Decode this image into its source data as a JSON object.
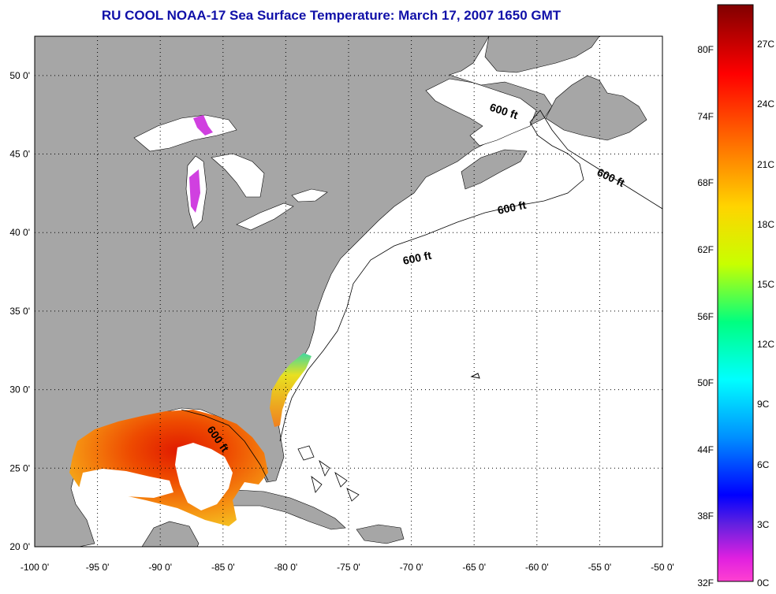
{
  "title": "RU COOL  NOAA-17  Sea Surface Temperature:  March 17, 2007 1650 GMT",
  "map": {
    "lon_range": [
      -100,
      -50
    ],
    "lat_range": [
      20,
      52.5
    ],
    "lon_ticks": [
      "-100 0'",
      "-95 0'",
      "-90 0'",
      "-85 0'",
      "-80 0'",
      "-75 0'",
      "-70 0'",
      "-65 0'",
      "-60 0'",
      "-55 0'",
      "-50 0'"
    ],
    "lat_ticks": [
      "20 0'",
      "25 0'",
      "30 0'",
      "35 0'",
      "40 0'",
      "45 0'",
      "50 0'"
    ],
    "lon_tick_values": [
      -100,
      -95,
      -90,
      -85,
      -80,
      -75,
      -70,
      -65,
      -60,
      -55,
      -50
    ],
    "lat_tick_values": [
      20,
      25,
      30,
      35,
      40,
      45,
      50
    ],
    "grid": true,
    "contour_label": "600 ft",
    "colors": {
      "land": "#a6a6a6",
      "ocean": "#ffffff"
    }
  },
  "colorbar": {
    "fahrenheit_labels": [
      "80F",
      "74F",
      "68F",
      "62F",
      "56F",
      "50F",
      "44F",
      "38F",
      "32F"
    ],
    "celsius_labels": [
      "27C",
      "24C",
      "21C",
      "18C",
      "15C",
      "12C",
      "9C",
      "6C",
      "3C",
      "0C"
    ]
  }
}
